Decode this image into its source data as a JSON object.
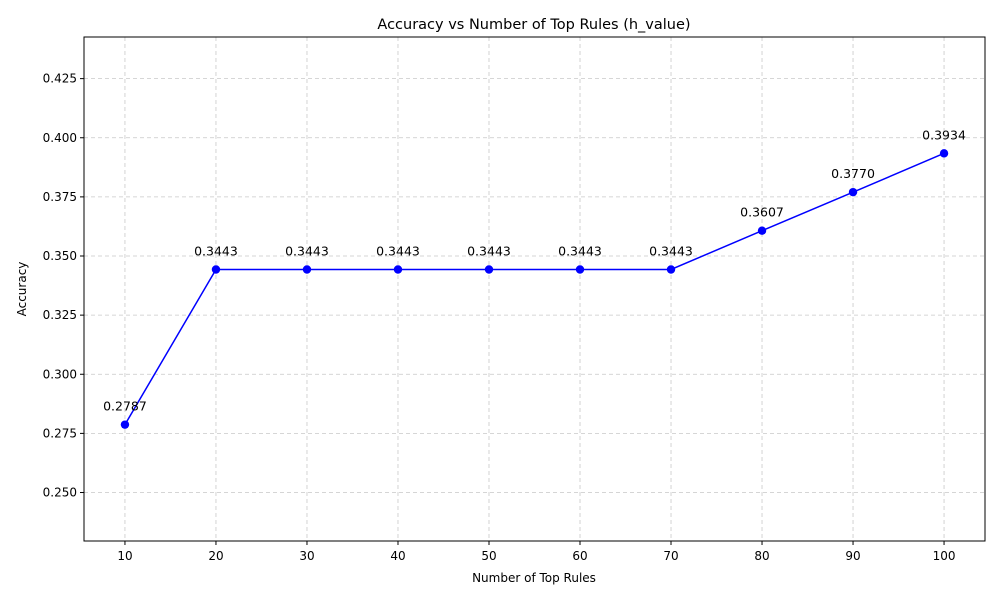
{
  "chart_data": {
    "type": "line",
    "title": "Accuracy vs Number of Top Rules (h_value)",
    "xlabel": "Number of Top Rules",
    "ylabel": "Accuracy",
    "x": [
      10,
      20,
      30,
      40,
      50,
      60,
      70,
      80,
      90,
      100
    ],
    "series": [
      {
        "values": [
          0.2787,
          0.3443,
          0.3443,
          0.3443,
          0.3443,
          0.3443,
          0.3443,
          0.3607,
          0.377,
          0.3934
        ],
        "data_labels": [
          "0.2787",
          "0.3443",
          "0.3443",
          "0.3443",
          "0.3443",
          "0.3443",
          "0.3443",
          "0.3607",
          "0.3770",
          "0.3934"
        ],
        "color": "#0000ff",
        "marker": "circle"
      }
    ],
    "xlim": [
      5.5,
      104.5
    ],
    "ylim": [
      0.2295,
      0.4426
    ],
    "x_ticks": [
      "10",
      "20",
      "30",
      "40",
      "50",
      "60",
      "70",
      "80",
      "90",
      "100"
    ],
    "y_ticks": [
      "0.250",
      "0.275",
      "0.300",
      "0.325",
      "0.350",
      "0.375",
      "0.400",
      "0.425"
    ],
    "y_tick_values": [
      0.25,
      0.275,
      0.3,
      0.325,
      0.35,
      0.375,
      0.4,
      0.425
    ],
    "grid": true,
    "grid_color": "#c8c8c8"
  }
}
